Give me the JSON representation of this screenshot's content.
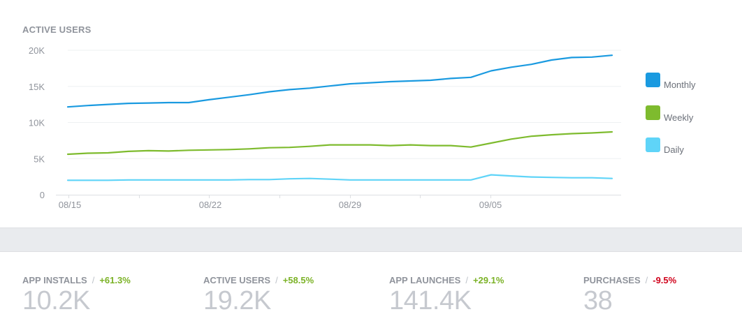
{
  "chart_data": {
    "type": "line",
    "title": "ACTIVE USERS",
    "x_tick_labels": [
      "08/15",
      "08/22",
      "08/29",
      "09/05"
    ],
    "y_tick_labels": [
      "20K",
      "15K",
      "10K",
      "5K",
      "0"
    ],
    "ylim": [
      0,
      20000
    ],
    "x_start": "08/15",
    "x_end": "09/11",
    "legend_position": "right",
    "grid": "horizontal",
    "series": [
      {
        "name": "Monthly",
        "color": "#1a9ae0",
        "values": [
          12150,
          12350,
          12500,
          12650,
          12700,
          12750,
          12750,
          13150,
          13500,
          13850,
          14250,
          14550,
          14750,
          15050,
          15350,
          15500,
          15650,
          15750,
          15850,
          16100,
          16250,
          17150,
          17650,
          18050,
          18650,
          19000,
          19050,
          19300
        ]
      },
      {
        "name": "Weekly",
        "color": "#7ebb2e",
        "values": [
          5600,
          5750,
          5800,
          6000,
          6100,
          6050,
          6150,
          6200,
          6250,
          6350,
          6500,
          6550,
          6700,
          6900,
          6900,
          6900,
          6800,
          6900,
          6800,
          6800,
          6600,
          7150,
          7700,
          8100,
          8300,
          8450,
          8550,
          8700
        ]
      },
      {
        "name": "Daily",
        "color": "#5fd4f8",
        "values": [
          2000,
          2000,
          2000,
          2050,
          2050,
          2050,
          2050,
          2050,
          2050,
          2100,
          2100,
          2200,
          2250,
          2150,
          2050,
          2050,
          2050,
          2050,
          2050,
          2050,
          2050,
          2750,
          2600,
          2450,
          2400,
          2350,
          2350,
          2250
        ]
      }
    ]
  },
  "stats": [
    {
      "label": "APP INSTALLS",
      "change": "+61.3%",
      "value": "10.2K"
    },
    {
      "label": "ACTIVE USERS",
      "change": "+58.5%",
      "value": "19.2K"
    },
    {
      "label": "APP LAUNCHES",
      "change": "+29.1%",
      "value": "141.4K"
    },
    {
      "label": "PURCHASES",
      "change": "-9.5%",
      "value": "38"
    }
  ]
}
